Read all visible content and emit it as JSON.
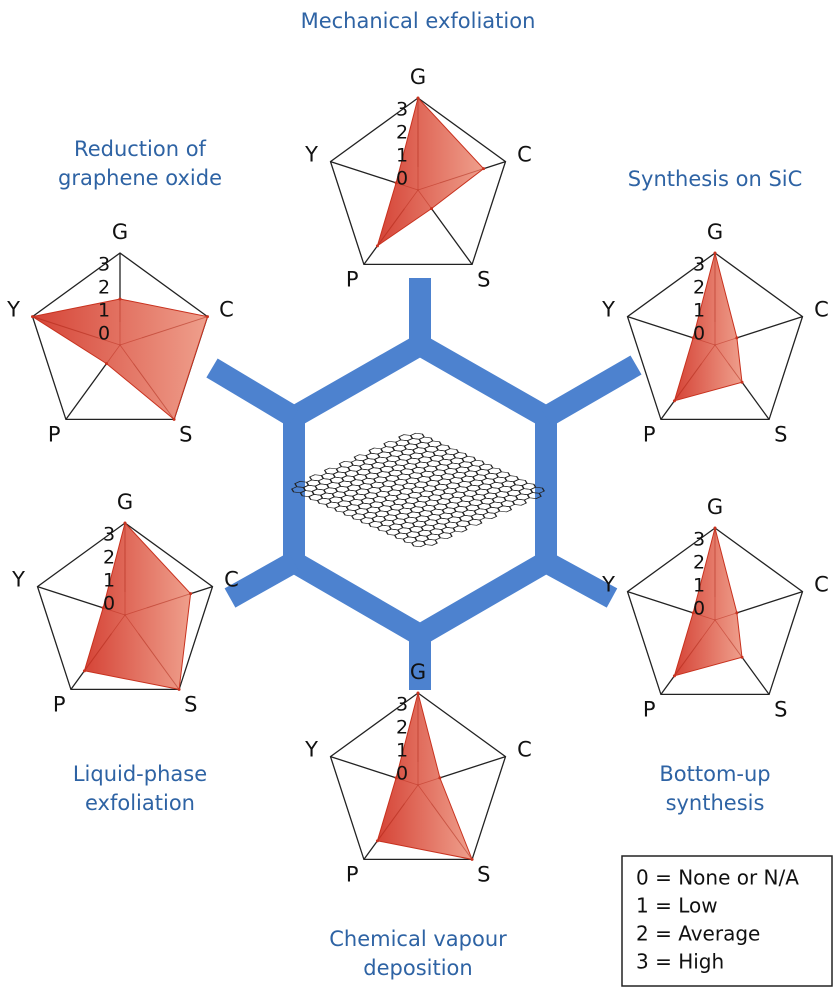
{
  "chart_data": [
    {
      "type": "radar",
      "title": [
        "Mechanical exfoliation"
      ],
      "axes": [
        "G",
        "C",
        "S",
        "P",
        "Y"
      ],
      "values": [
        3,
        2,
        0,
        2,
        0
      ],
      "rlim": [
        0,
        3
      ],
      "rticks": [
        0,
        1,
        2,
        3
      ]
    },
    {
      "type": "radar",
      "title": [
        "Reduction of",
        "graphene oxide"
      ],
      "axes": [
        "G",
        "C",
        "S",
        "P",
        "Y"
      ],
      "values": [
        1,
        3,
        3,
        0,
        3
      ],
      "rlim": [
        0,
        3
      ],
      "rticks": [
        0,
        1,
        2,
        3
      ]
    },
    {
      "type": "radar",
      "title": [
        "Synthesis on SiC"
      ],
      "axes": [
        "G",
        "C",
        "S",
        "P",
        "Y"
      ],
      "values": [
        3,
        0,
        1,
        2,
        0
      ],
      "rlim": [
        0,
        3
      ],
      "rticks": [
        0,
        1,
        2,
        3
      ]
    },
    {
      "type": "radar",
      "title": [
        "Liquid-phase",
        "exfoliation"
      ],
      "axes": [
        "G",
        "C",
        "S",
        "P",
        "Y"
      ],
      "values": [
        3,
        2,
        3,
        2,
        0
      ],
      "rlim": [
        0,
        3
      ],
      "rticks": [
        0,
        1,
        2,
        3
      ]
    },
    {
      "type": "radar",
      "title": [
        "Bottom-up",
        "synthesis"
      ],
      "axes": [
        "G",
        "C",
        "S",
        "P",
        "Y"
      ],
      "values": [
        3,
        0,
        1,
        2,
        0
      ],
      "rlim": [
        0,
        3
      ],
      "rticks": [
        0,
        1,
        2,
        3
      ]
    },
    {
      "type": "radar",
      "title": [
        "Chemical vapour",
        "deposition"
      ],
      "axes": [
        "G",
        "C",
        "S",
        "P",
        "Y"
      ],
      "values": [
        3,
        0,
        3,
        2,
        0
      ],
      "rlim": [
        0,
        3
      ],
      "rticks": [
        0,
        1,
        2,
        3
      ]
    }
  ],
  "legend": {
    "items": [
      "0 = None or N/A",
      "1 = Low",
      "2 = Average",
      "3 = High"
    ]
  }
}
